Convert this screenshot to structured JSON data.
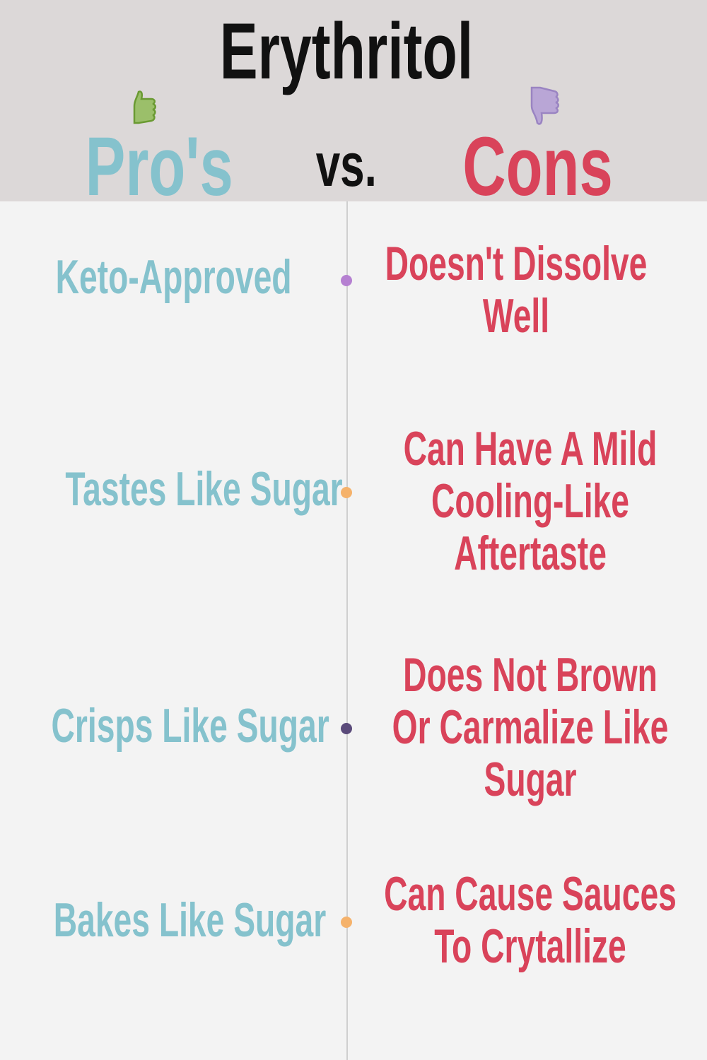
{
  "title": "Erythritol",
  "pros_heading": "Pro's",
  "vs": "vs.",
  "cons_heading": "Cons",
  "icons": {
    "pros": "thumbs-up-icon",
    "cons": "thumbs-down-icon"
  },
  "colors": {
    "pros": "#85c2cd",
    "cons": "#d9435a",
    "header_bg": "#dcd8d8",
    "thumbs_up": "#9bbf6a",
    "thumbs_down": "#b9a6d6"
  },
  "rows": [
    {
      "pro": "Keto-Approved",
      "con": "Doesn't Dissolve Well",
      "dot_color": "#b580d1"
    },
    {
      "pro": "Tastes Like Sugar",
      "con": "Can Have A Mild Cooling-Like Aftertaste",
      "dot_color": "#f5b26b"
    },
    {
      "pro": "Crisps Like Sugar",
      "con": "Does Not Brown Or Carmalize Like Sugar",
      "dot_color": "#5a4a7a"
    },
    {
      "pro": "Bakes Like Sugar",
      "con": "Can Cause Sauces To Crytallize",
      "dot_color": "#f5b26b"
    }
  ]
}
